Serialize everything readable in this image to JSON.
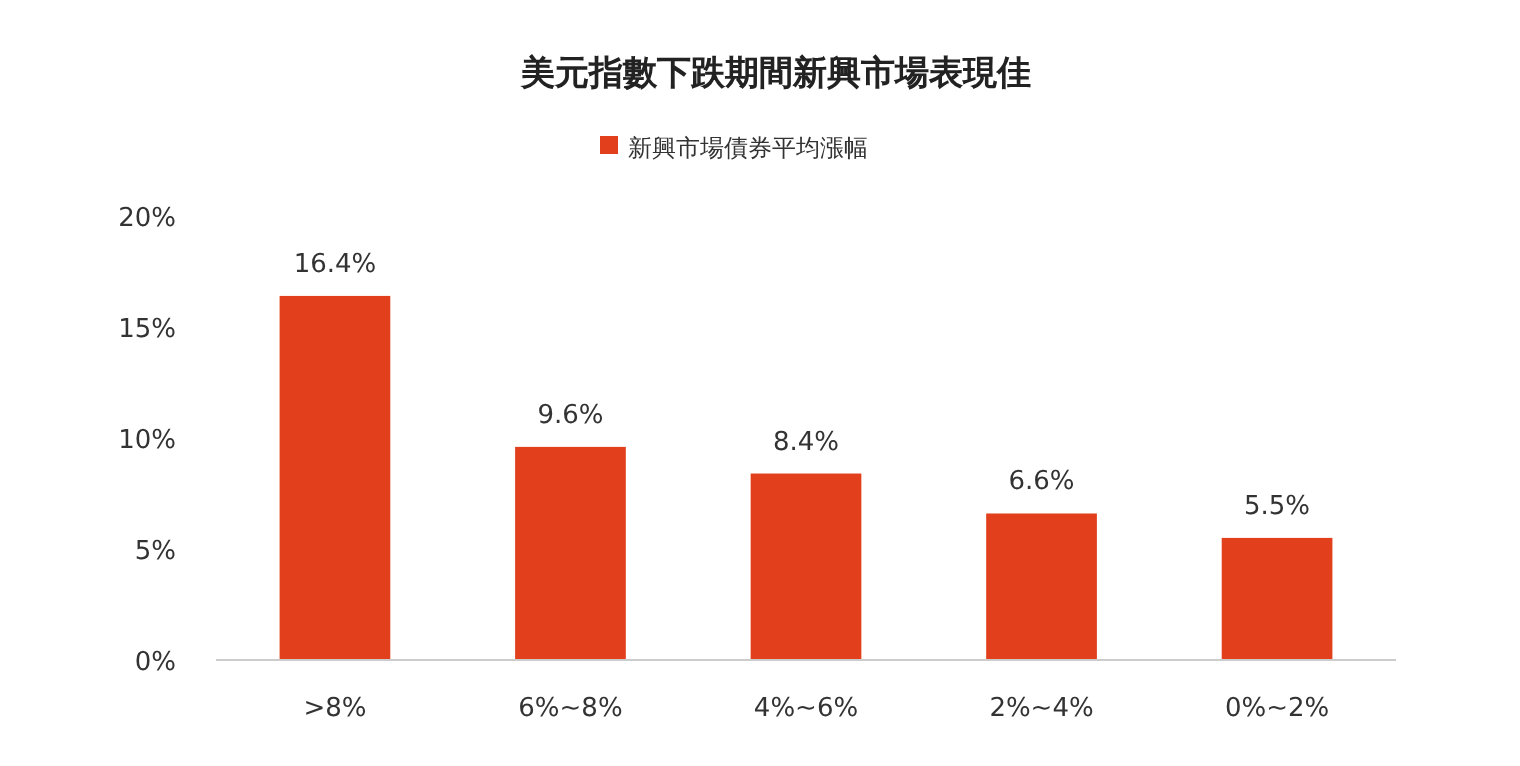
{
  "chart_data": {
    "type": "bar",
    "title": "美元指數下跌期間新興市場表現佳",
    "categories": [
      ">8%",
      "6%~8%",
      "4%~6%",
      "2%~4%",
      "0%~2%"
    ],
    "series": [
      {
        "name": "新興市場債券平均漲幅",
        "color": "#e2401c",
        "values": [
          16.4,
          9.6,
          8.4,
          6.6,
          5.5
        ]
      }
    ],
    "value_labels": [
      "16.4%",
      "9.6%",
      "8.4%",
      "6.6%",
      "5.5%"
    ],
    "ylim": [
      0,
      20
    ],
    "yticks": [
      {
        "value": 0,
        "label": "0%"
      },
      {
        "value": 5,
        "label": "5%"
      },
      {
        "value": 10,
        "label": "10%"
      },
      {
        "value": 15,
        "label": "15%"
      },
      {
        "value": 20,
        "label": "20%"
      }
    ],
    "grid": false,
    "legend": "top"
  }
}
